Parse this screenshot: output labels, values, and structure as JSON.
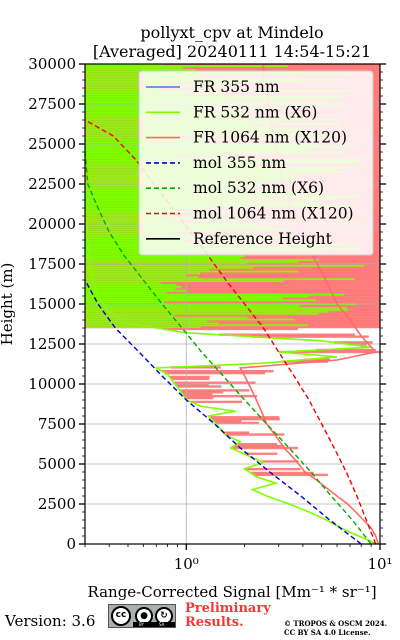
{
  "chart_data": {
    "type": "line",
    "title": "pollyxt_cpv at Mindelo",
    "subtitle": "[Averaged] 20240111 14:54-15:21",
    "xlabel": "Range-Corrected Signal [Mm⁻¹ * sr⁻¹]",
    "ylabel": "Height (m)",
    "xscale": "log",
    "xlim": [
      0.3,
      10
    ],
    "ylim": [
      0,
      30000
    ],
    "x_ticks": [
      {
        "value": 1,
        "label": "10⁰"
      },
      {
        "value": 10,
        "label": "10¹"
      }
    ],
    "y_ticks": [
      0,
      2500,
      5000,
      7500,
      10000,
      12500,
      15000,
      17500,
      20000,
      22500,
      25000,
      27500,
      30000
    ],
    "y_tick_labels": [
      "0",
      "2500",
      "5000",
      "7500",
      "10000",
      "12500",
      "15000",
      "17500",
      "20000",
      "22500",
      "25000",
      "27500",
      "30000"
    ],
    "grid": true,
    "legend_position": "top-right",
    "series": [
      {
        "name": "FR 355 nm",
        "color": "#3b7fdc",
        "style": "solid",
        "points": []
      },
      {
        "name": "FR 532 nm (X6)",
        "color": "#80ff00",
        "style": "solid",
        "points": [
          [
            9.6,
            0
          ],
          [
            8.5,
            300
          ],
          [
            7.4,
            600
          ],
          [
            6.3,
            1000
          ],
          [
            5.3,
            1500
          ],
          [
            4.3,
            2000
          ],
          [
            3.4,
            2500
          ],
          [
            2.6,
            3000
          ],
          [
            2.2,
            3400
          ],
          [
            2.9,
            3800
          ],
          [
            2.3,
            4200
          ],
          [
            2.0,
            4700
          ],
          [
            2.5,
            5100
          ],
          [
            2.1,
            5500
          ],
          [
            1.7,
            6000
          ],
          [
            1.9,
            6400
          ],
          [
            1.6,
            6800
          ],
          [
            1.5,
            7200
          ],
          [
            1.4,
            7600
          ],
          [
            1.3,
            8000
          ],
          [
            1.8,
            8300
          ],
          [
            1.2,
            8600
          ],
          [
            1.0,
            9000
          ],
          [
            0.95,
            9400
          ],
          [
            0.9,
            9800
          ],
          [
            0.85,
            10200
          ],
          [
            0.8,
            10600
          ],
          [
            0.7,
            11000
          ],
          [
            2.5,
            11300
          ],
          [
            6.0,
            11700
          ],
          [
            3.0,
            12000
          ],
          [
            9.0,
            12300
          ],
          [
            5.0,
            12700
          ],
          [
            1.0,
            13200
          ],
          [
            0.5,
            13800
          ],
          [
            0.4,
            14500
          ],
          [
            0.35,
            15500
          ],
          [
            0.32,
            17000
          ],
          [
            0.31,
            19000
          ],
          [
            0.3,
            21000
          ],
          [
            0.3,
            24000
          ],
          [
            0.3,
            28000
          ],
          [
            0.3,
            30000
          ]
        ]
      },
      {
        "name": "FR 1064 nm (X120)",
        "color": "#ff6a6a",
        "style": "solid",
        "points": [
          [
            9.8,
            0
          ],
          [
            9.5,
            500
          ],
          [
            9.0,
            1000
          ],
          [
            8.2,
            1500
          ],
          [
            7.5,
            2000
          ],
          [
            6.8,
            2500
          ],
          [
            6.0,
            3000
          ],
          [
            5.3,
            3500
          ],
          [
            4.7,
            4000
          ],
          [
            4.1,
            4500
          ],
          [
            3.8,
            5000
          ],
          [
            3.5,
            5500
          ],
          [
            3.2,
            6000
          ],
          [
            3.0,
            6500
          ],
          [
            2.8,
            7000
          ],
          [
            2.6,
            7500
          ],
          [
            2.5,
            8000
          ],
          [
            2.4,
            8500
          ],
          [
            2.3,
            9000
          ],
          [
            2.2,
            9500
          ],
          [
            2.1,
            10000
          ],
          [
            2.0,
            10500
          ],
          [
            1.9,
            11000
          ],
          [
            6.0,
            11500
          ],
          [
            9.5,
            12000
          ],
          [
            8.0,
            13000
          ],
          [
            7.0,
            14000
          ],
          [
            6.0,
            15000
          ],
          [
            5.5,
            16000
          ],
          [
            5.0,
            17000
          ],
          [
            4.5,
            18000
          ],
          [
            4.0,
            19000
          ],
          [
            3.8,
            20000
          ],
          [
            3.5,
            21000
          ],
          [
            3.3,
            22000
          ],
          [
            3.1,
            23000
          ],
          [
            3.0,
            24000
          ],
          [
            2.9,
            25000
          ],
          [
            2.8,
            26000
          ],
          [
            2.7,
            27000
          ],
          [
            2.6,
            28000
          ],
          [
            2.5,
            29000
          ],
          [
            2.5,
            30000
          ]
        ]
      },
      {
        "name": "mol 355 nm",
        "color": "#0000cc",
        "style": "dashed",
        "points": [
          [
            8.0,
            0
          ],
          [
            5.5,
            1500
          ],
          [
            3.9,
            3000
          ],
          [
            2.7,
            4500
          ],
          [
            1.9,
            6000
          ],
          [
            1.4,
            7500
          ],
          [
            1.0,
            9000
          ],
          [
            0.75,
            10500
          ],
          [
            0.57,
            12000
          ],
          [
            0.43,
            13500
          ],
          [
            0.35,
            15000
          ],
          [
            0.3,
            16500
          ],
          [
            0.25,
            18300
          ]
        ]
      },
      {
        "name": "mol 532 nm (X6)",
        "color": "#00aa00",
        "style": "dashed",
        "points": [
          [
            9.0,
            0
          ],
          [
            7.2,
            1500
          ],
          [
            5.6,
            3000
          ],
          [
            4.4,
            4500
          ],
          [
            3.4,
            6000
          ],
          [
            2.6,
            7500
          ],
          [
            2.0,
            9000
          ],
          [
            1.55,
            10500
          ],
          [
            1.2,
            12000
          ],
          [
            0.95,
            13500
          ],
          [
            0.75,
            15000
          ],
          [
            0.6,
            16500
          ],
          [
            0.48,
            18000
          ],
          [
            0.4,
            19500
          ],
          [
            0.35,
            21000
          ],
          [
            0.31,
            22500
          ],
          [
            0.3,
            24500
          ]
        ]
      },
      {
        "name": "mol 1064 nm (X120)",
        "color": "#ee0000",
        "style": "dashed",
        "points": [
          [
            9.5,
            0
          ],
          [
            8.5,
            1500
          ],
          [
            7.6,
            3000
          ],
          [
            6.7,
            4500
          ],
          [
            5.8,
            6000
          ],
          [
            5.0,
            7500
          ],
          [
            4.3,
            9000
          ],
          [
            3.6,
            10500
          ],
          [
            3.0,
            12000
          ],
          [
            2.5,
            13500
          ],
          [
            2.0,
            15000
          ],
          [
            1.6,
            16500
          ],
          [
            1.3,
            18000
          ],
          [
            1.05,
            19500
          ],
          [
            0.85,
            21000
          ],
          [
            0.68,
            22500
          ],
          [
            0.55,
            24000
          ],
          [
            0.42,
            25500
          ],
          [
            0.3,
            26500
          ]
        ]
      },
      {
        "name": "Reference Height",
        "color": "#000000",
        "style": "solid",
        "points": []
      }
    ]
  },
  "footer": {
    "version": "Version: 3.6",
    "cc_text": "cc",
    "cc_by": "BY",
    "cc_sa": "SA",
    "preliminary_line1": "Preliminary",
    "preliminary_line2": "Results.",
    "copyright_line1": "© TROPOS & OSCM 2024.",
    "copyright_line2": "CC BY SA 4.0 License."
  }
}
